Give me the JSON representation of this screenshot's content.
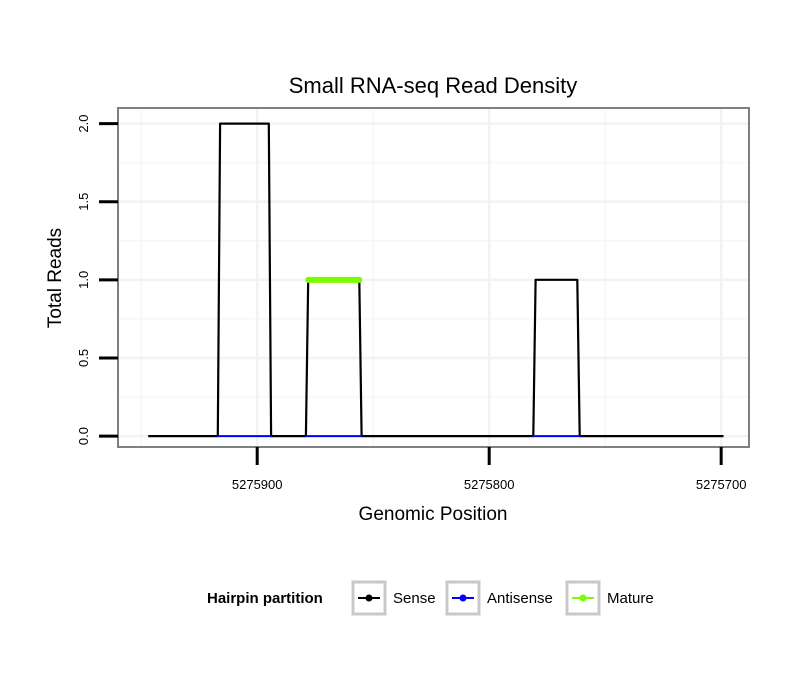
{
  "chart_data": {
    "type": "line",
    "title": "Small RNA-seq Read Density",
    "xlabel": "Genomic Position",
    "ylabel": "Total Reads",
    "x_reversed": true,
    "xlim": [
      5275960,
      5275688
    ],
    "ylim": [
      -0.07,
      2.1
    ],
    "x_ticks": [
      5275900,
      5275800,
      5275700
    ],
    "x_tick_labels": [
      "5275900",
      "5275800",
      "5275700"
    ],
    "y_ticks": [
      0.0,
      0.5,
      1.0,
      1.5,
      2.0
    ],
    "y_tick_labels": [
      "0.0",
      "0.5",
      "1.0",
      "1.5",
      "2.0"
    ],
    "grid": true,
    "legend": {
      "title": "Hairpin partition",
      "position": "bottom",
      "entries": [
        {
          "label": "Sense",
          "color": "#000000"
        },
        {
          "label": "Antisense",
          "color": "#0000ff"
        },
        {
          "label": "Mature",
          "color": "#7cfc00"
        }
      ]
    },
    "series": [
      {
        "name": "Sense",
        "color": "#000000",
        "x": [
          5275947,
          5275917,
          5275916,
          5275895,
          5275894,
          5275879,
          5275878,
          5275856,
          5275855,
          5275781,
          5275780,
          5275762,
          5275761,
          5275699
        ],
        "y": [
          0,
          0,
          2,
          2,
          0,
          0,
          1,
          1,
          0,
          0,
          1,
          1,
          0,
          0
        ]
      },
      {
        "name": "Antisense",
        "color": "#0000ff",
        "segments": [
          [
            5275917,
            5275894
          ],
          [
            5275879,
            5275855
          ],
          [
            5275781,
            5275761
          ]
        ],
        "y": 0
      },
      {
        "name": "Mature",
        "color": "#7cfc00",
        "segments": [
          [
            5275878,
            5275856
          ]
        ],
        "y": 1
      }
    ]
  }
}
